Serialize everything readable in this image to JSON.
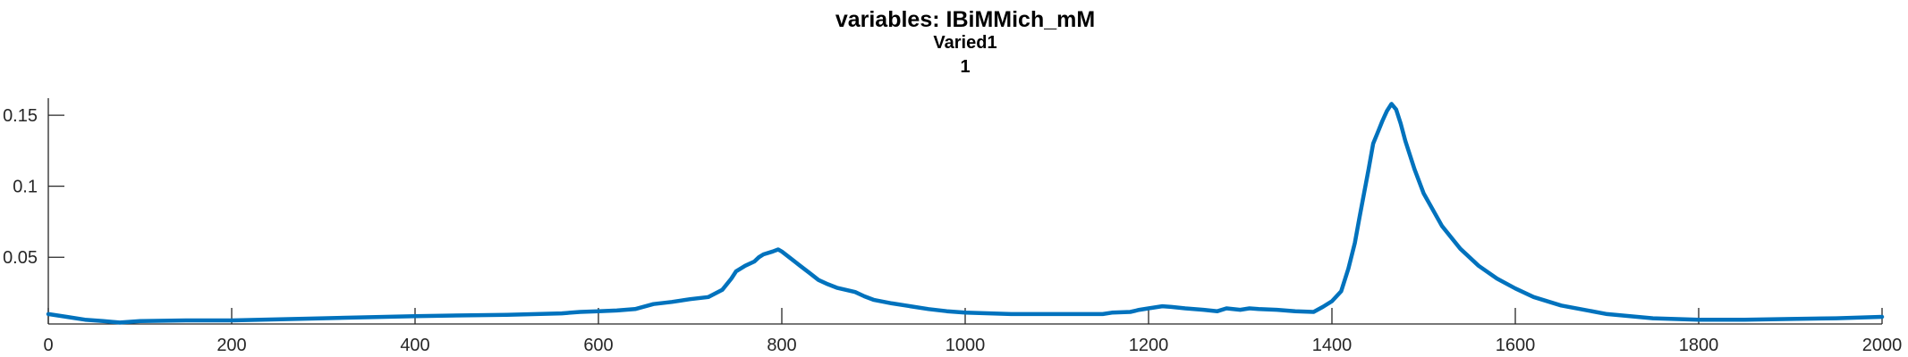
{
  "chart_data": {
    "type": "line",
    "title": "variables: IBiMMich_mM",
    "subtitle_lines": [
      "Varied1",
      "1"
    ],
    "xlabel": "",
    "ylabel": "",
    "xlim": [
      0,
      2000
    ],
    "ylim": [
      0.003,
      0.162
    ],
    "xticks": [
      0,
      200,
      400,
      600,
      800,
      1000,
      1200,
      1400,
      1600,
      1800,
      2000
    ],
    "xtick_labels": [
      "0",
      "200",
      "400",
      "600",
      "800",
      "1000",
      "1200",
      "1400",
      "1600",
      "1800",
      "2000"
    ],
    "yticks": [
      0.05,
      0.1,
      0.15
    ],
    "ytick_labels": [
      "0.05",
      "0.1",
      "0.15"
    ],
    "grid": false,
    "series": [
      {
        "color": "#0072BD",
        "x": [
          0,
          20,
          40,
          60,
          78,
          100,
          150,
          200,
          300,
          400,
          500,
          560,
          580,
          600,
          620,
          640,
          660,
          680,
          700,
          720,
          735,
          745,
          750,
          760,
          770,
          775,
          780,
          790,
          796,
          800,
          810,
          820,
          830,
          840,
          850,
          860,
          870,
          880,
          890,
          900,
          920,
          940,
          960,
          980,
          1000,
          1050,
          1100,
          1150,
          1160,
          1180,
          1190,
          1200,
          1215,
          1225,
          1240,
          1260,
          1275,
          1285,
          1300,
          1310,
          1320,
          1340,
          1360,
          1380,
          1390,
          1400,
          1410,
          1418,
          1425,
          1430,
          1435,
          1440,
          1445,
          1450,
          1455,
          1460,
          1465,
          1470,
          1475,
          1480,
          1490,
          1500,
          1520,
          1540,
          1560,
          1580,
          1600,
          1620,
          1650,
          1700,
          1750,
          1800,
          1850,
          1900,
          1950,
          2000
        ],
        "y": [
          0.01,
          0.008,
          0.006,
          0.005,
          0.004,
          0.005,
          0.0055,
          0.0055,
          0.007,
          0.0085,
          0.0095,
          0.0105,
          0.0115,
          0.012,
          0.0125,
          0.0135,
          0.017,
          0.0185,
          0.0205,
          0.022,
          0.027,
          0.035,
          0.04,
          0.044,
          0.047,
          0.05,
          0.052,
          0.054,
          0.0555,
          0.054,
          0.049,
          0.044,
          0.039,
          0.034,
          0.031,
          0.0285,
          0.027,
          0.0255,
          0.0225,
          0.02,
          0.0175,
          0.0155,
          0.0135,
          0.012,
          0.011,
          0.01,
          0.01,
          0.01,
          0.011,
          0.0115,
          0.013,
          0.014,
          0.0155,
          0.015,
          0.014,
          0.013,
          0.012,
          0.014,
          0.013,
          0.014,
          0.0135,
          0.013,
          0.012,
          0.0115,
          0.015,
          0.019,
          0.026,
          0.042,
          0.06,
          0.078,
          0.095,
          0.112,
          0.13,
          0.138,
          0.146,
          0.153,
          0.158,
          0.154,
          0.144,
          0.132,
          0.112,
          0.095,
          0.072,
          0.056,
          0.044,
          0.035,
          0.028,
          0.022,
          0.016,
          0.01,
          0.007,
          0.006,
          0.006,
          0.0065,
          0.007,
          0.008
        ]
      }
    ]
  }
}
